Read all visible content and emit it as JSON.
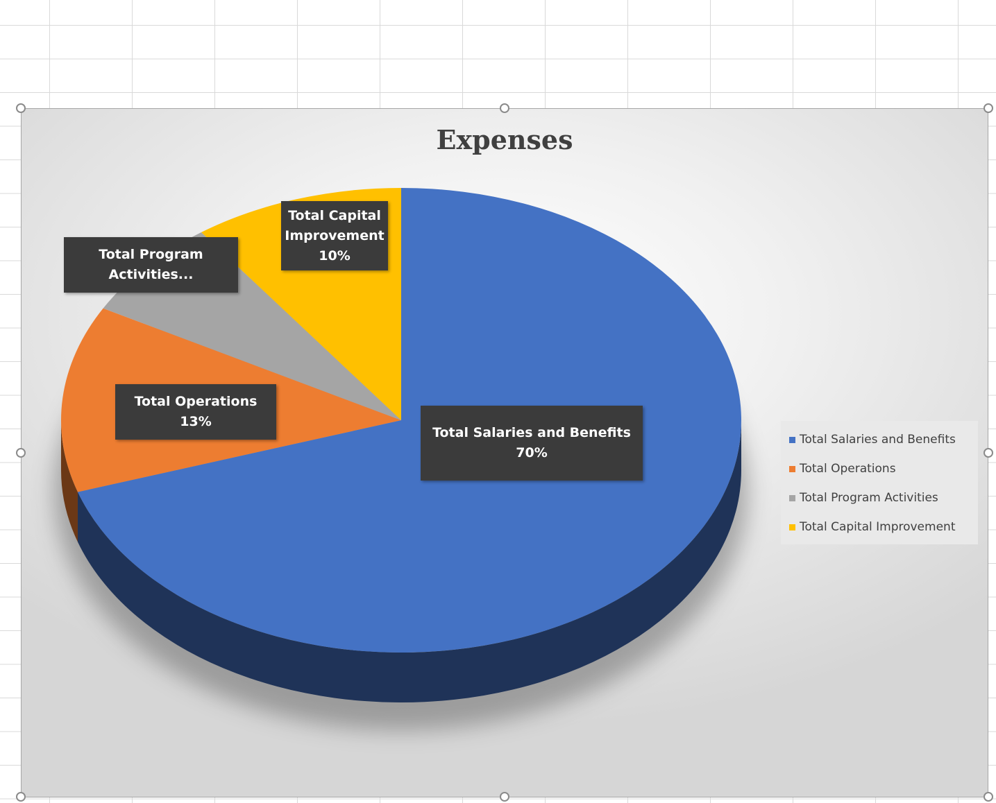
{
  "chart_data": {
    "type": "pie",
    "title": "Expenses",
    "categories": [
      "Total Salaries and Benefits",
      "Total Operations",
      "Total Program Activities",
      "Total Capital Improvement"
    ],
    "values": [
      70,
      13,
      7,
      10
    ],
    "colors": [
      "#4472C4",
      "#ED7D31",
      "#A5A5A5",
      "#FFC000"
    ],
    "legend_position": "right",
    "data_labels": [
      {
        "line1": "Total Salaries and Benefits",
        "line2": "70%"
      },
      {
        "line1": "Total Operations",
        "line2": "13%"
      },
      {
        "line1": "Total Program",
        "line2": "Activities..."
      },
      {
        "line1": "Total Capital",
        "line2": "Improvement",
        "line3": "10%"
      }
    ]
  }
}
